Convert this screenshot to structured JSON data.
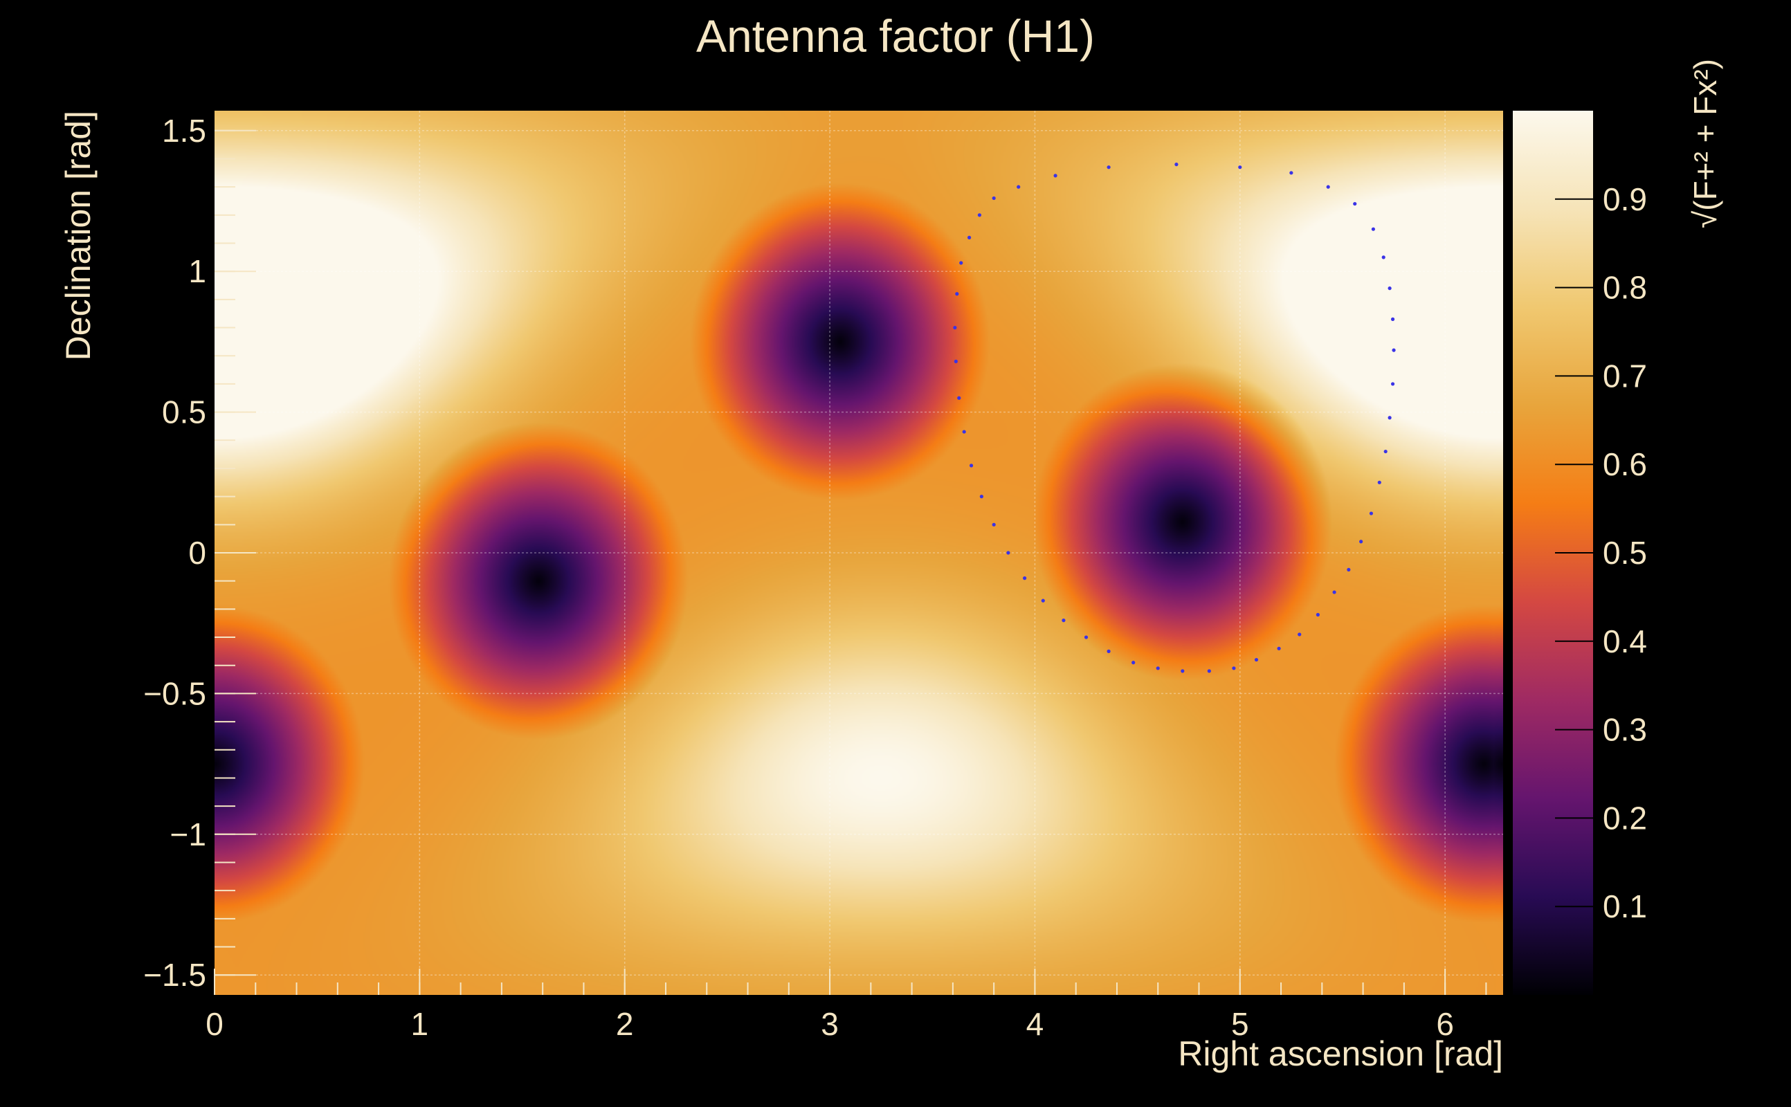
{
  "chart_data": {
    "type": "heatmap",
    "title": "Antenna factor (H1)",
    "xlabel": "Right ascension [rad]",
    "ylabel": "Declination [rad]",
    "xlim": [
      0,
      6.283
    ],
    "ylim": [
      -1.5708,
      1.5708
    ],
    "x_ticks": [
      "0",
      "1",
      "2",
      "3",
      "4",
      "5",
      "6"
    ],
    "x_tick_values": [
      0,
      1,
      2,
      3,
      4,
      5,
      6
    ],
    "y_ticks": [
      "1.5",
      "1",
      "0.5",
      "0",
      "−0.5",
      "−1",
      "−1.5"
    ],
    "y_tick_values": [
      1.5,
      1,
      0.5,
      0,
      -0.5,
      -1,
      -1.5
    ],
    "grid": true,
    "colorbar": {
      "label": "√(F+² + Fx²)",
      "range": [
        0,
        1
      ],
      "ticks": [
        "0.9",
        "0.8",
        "0.7",
        "0.6",
        "0.5",
        "0.4",
        "0.3",
        "0.2",
        "0.1"
      ],
      "tick_values": [
        0.9,
        0.8,
        0.7,
        0.6,
        0.5,
        0.4,
        0.3,
        0.2,
        0.1
      ],
      "colormap": [
        "#000004",
        "#280b54",
        "#65156e",
        "#9f2a63",
        "#d44842",
        "#f57d15",
        "#e8a53c",
        "#f0c870",
        "#f6e4b8",
        "#fcf8ec"
      ]
    },
    "minima": [
      {
        "ra": 3.05,
        "dec": 0.75,
        "value": 0.0
      },
      {
        "ra": 4.72,
        "dec": 0.11,
        "value": 0.0
      },
      {
        "ra": 1.58,
        "dec": -0.1,
        "value": 0.0
      },
      {
        "ra": 6.19,
        "dec": -0.75,
        "value": 0.0
      },
      {
        "ra": 0.0,
        "dec": -0.75,
        "value": 0.0
      }
    ],
    "maxima": [
      {
        "ra": 0.2,
        "dec": 0.85,
        "value": 1.0
      },
      {
        "ra": 6.1,
        "dec": 0.85,
        "value": 1.0
      },
      {
        "ra": 3.25,
        "dec": -0.8,
        "value": 1.0
      }
    ],
    "overlay_series": {
      "marker_color": "#3a33e6",
      "ra": [
        4.69,
        5.0,
        5.25,
        5.43,
        5.56,
        5.65,
        5.7,
        5.73,
        5.745,
        5.75,
        5.745,
        5.73,
        5.71,
        5.68,
        5.64,
        5.59,
        5.53,
        5.46,
        5.38,
        5.29,
        5.19,
        5.08,
        4.97,
        4.85,
        4.72,
        4.6,
        4.48,
        4.36,
        4.25,
        4.14,
        4.04,
        3.95,
        3.87,
        3.8,
        3.74,
        3.69,
        3.655,
        3.63,
        3.615,
        3.61,
        3.62,
        3.64,
        3.68,
        3.73,
        3.8,
        3.92,
        4.1,
        4.36
      ],
      "dec": [
        1.38,
        1.37,
        1.35,
        1.3,
        1.24,
        1.15,
        1.05,
        0.94,
        0.83,
        0.72,
        0.6,
        0.48,
        0.36,
        0.25,
        0.14,
        0.04,
        -0.06,
        -0.14,
        -0.22,
        -0.29,
        -0.34,
        -0.38,
        -0.41,
        -0.42,
        -0.42,
        -0.41,
        -0.39,
        -0.35,
        -0.3,
        -0.24,
        -0.17,
        -0.09,
        0.0,
        0.1,
        0.2,
        0.31,
        0.43,
        0.55,
        0.68,
        0.8,
        0.92,
        1.03,
        1.12,
        1.2,
        1.26,
        1.3,
        1.34,
        1.37
      ]
    }
  }
}
